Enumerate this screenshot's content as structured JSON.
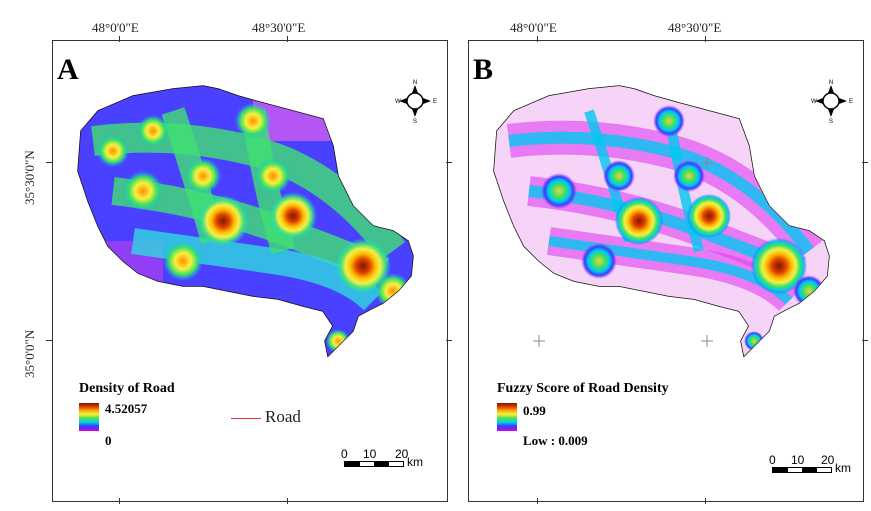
{
  "longitude_ticks": [
    "48°0'0\"E",
    "48°30'0\"E"
  ],
  "latitude_ticks": [
    "35°30'0\"N",
    "35°0'0\"N"
  ],
  "panels": [
    {
      "letter": "A",
      "legend_title": "Density of Road",
      "legend_high": "4.52057",
      "legend_low": "0",
      "road_label": "Road",
      "scale": {
        "labels": [
          "0",
          "10",
          "20"
        ],
        "unit": "km"
      }
    },
    {
      "letter": "B",
      "legend_title": "Fuzzy Score of Road Density",
      "legend_high": "0.99",
      "legend_low": "Low : 0.009",
      "scale": {
        "labels": [
          "0",
          "10",
          "20"
        ],
        "unit": "km"
      }
    }
  ],
  "compass_letters": {
    "n": "N",
    "s": "S",
    "e": "E",
    "w": "W"
  },
  "colors": {
    "density_ramp": [
      "#7a1a00",
      "#e04000",
      "#ffb000",
      "#f8f040",
      "#50e050",
      "#00d8e8",
      "#3040ff",
      "#d000e0"
    ],
    "road": "#e0304a"
  }
}
